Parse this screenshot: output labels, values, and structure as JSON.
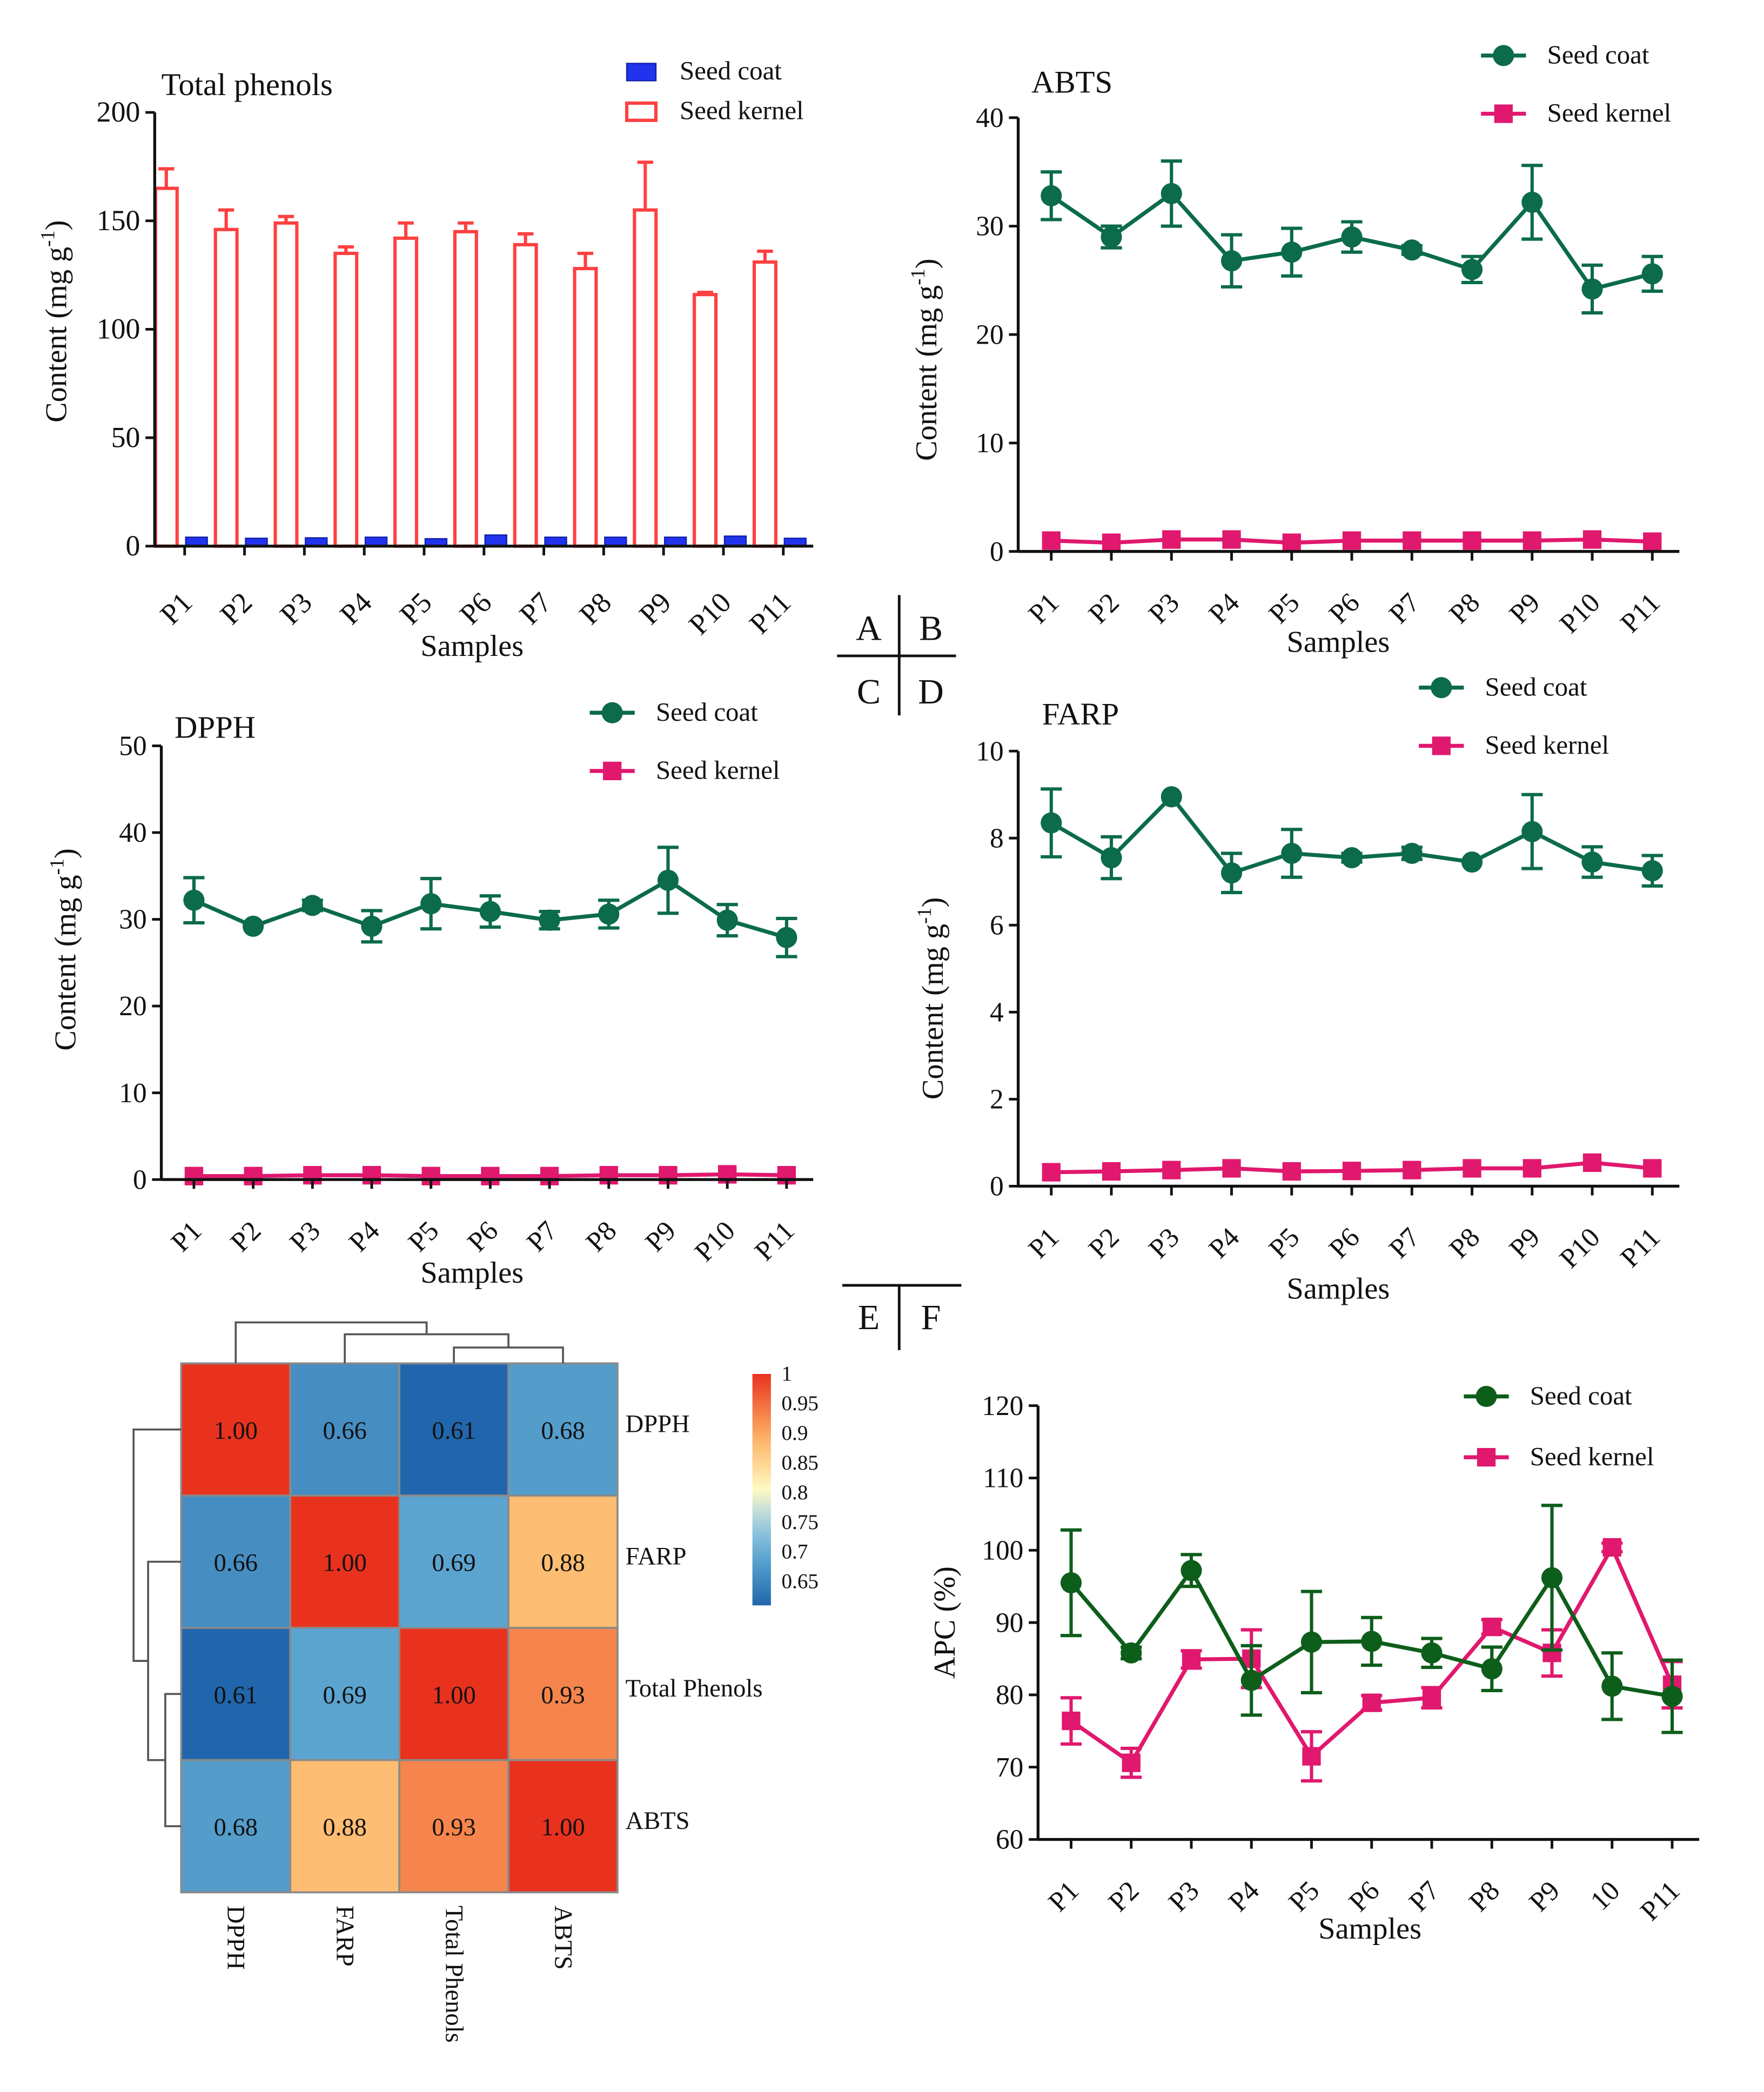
{
  "panel_letters": [
    "A",
    "B",
    "C",
    "D",
    "E",
    "F"
  ],
  "samples": [
    "P1",
    "P2",
    "P3",
    "P4",
    "P5",
    "P6",
    "P7",
    "P8",
    "P9",
    "P10",
    "P11"
  ],
  "colors": {
    "coat_bar": "#2233ee",
    "kernel_bar": "#ff4040",
    "coat_line": "#0b6b4a",
    "kernel_line": "#e0186e",
    "coat_line_f": "#0d5e1a",
    "heat_low": "#2166ac",
    "heat_mid": "#fff9c4",
    "heat_high": "#e8321e"
  },
  "chart_data": [
    {
      "id": "A",
      "type": "bar",
      "title": "Total phenols",
      "xlabel": "Samples",
      "ylabel": "Content (mg g",
      "ylabel_sup": "-1",
      "ylabel_end": ")",
      "categories": [
        "P1",
        "P2",
        "P3",
        "P4",
        "P5",
        "P6",
        "P7",
        "P8",
        "P9",
        "P10",
        "P11"
      ],
      "ylim": [
        0,
        200
      ],
      "yticks": [
        0,
        50,
        100,
        150,
        200
      ],
      "legend_position": "top-right",
      "series": [
        {
          "name": "Seed coat",
          "values": [
            3.5,
            3,
            3.2,
            3.5,
            2.8,
            4.5,
            3.5,
            3.5,
            3.5,
            4,
            3
          ],
          "errors": [
            0.5,
            0.4,
            0.4,
            0.5,
            0.4,
            0.6,
            0.5,
            0.5,
            0.5,
            0.5,
            0.4
          ]
        },
        {
          "name": "Seed kernel",
          "values": [
            165,
            146,
            149,
            135,
            142,
            145,
            139,
            128,
            155,
            116,
            131
          ],
          "errors": [
            9,
            9,
            3,
            3,
            7,
            4,
            5,
            7,
            22,
            1,
            5
          ]
        }
      ]
    },
    {
      "id": "B",
      "type": "line",
      "title": "ABTS",
      "xlabel": "Samples",
      "ylabel": "Content (mg g",
      "ylabel_sup": "-1",
      "ylabel_end": ")",
      "categories": [
        "P1",
        "P2",
        "P3",
        "P4",
        "P5",
        "P6",
        "P7",
        "P8",
        "P9",
        "P10",
        "P11"
      ],
      "ylim": [
        0,
        40
      ],
      "yticks": [
        0,
        10,
        20,
        30,
        40
      ],
      "legend_position": "top-right",
      "series": [
        {
          "name": "Seed coat",
          "marker": "circle",
          "values": [
            32.8,
            29.0,
            33.0,
            26.8,
            27.6,
            29.0,
            27.8,
            26.0,
            32.2,
            24.2,
            25.6
          ],
          "errors": [
            2.2,
            1.0,
            3.0,
            2.4,
            2.2,
            1.4,
            0.4,
            1.2,
            3.4,
            2.2,
            1.6
          ]
        },
        {
          "name": "Seed kernel",
          "marker": "square",
          "values": [
            1.0,
            0.8,
            1.1,
            1.1,
            0.8,
            1.0,
            1.0,
            1.0,
            1.0,
            1.1,
            0.9
          ],
          "errors": [
            0.1,
            0.1,
            0.1,
            0.1,
            0.1,
            0.1,
            0.1,
            0.1,
            0.1,
            0.1,
            0.1
          ]
        }
      ]
    },
    {
      "id": "C",
      "type": "line",
      "title": "DPPH",
      "xlabel": "Samples",
      "ylabel": "Content (mg g",
      "ylabel_sup": "-1",
      "ylabel_end": ")",
      "categories": [
        "P1",
        "P2",
        "P3",
        "P4",
        "P5",
        "P6",
        "P7",
        "P8",
        "P9",
        "P10",
        "P11"
      ],
      "ylim": [
        0,
        50
      ],
      "yticks": [
        0,
        10,
        20,
        30,
        40,
        50
      ],
      "legend_position": "top-right",
      "series": [
        {
          "name": "Seed coat",
          "marker": "circle",
          "values": [
            32.2,
            29.2,
            31.6,
            29.2,
            31.8,
            30.9,
            29.9,
            30.6,
            34.5,
            29.9,
            27.9
          ],
          "errors": [
            2.6,
            0.4,
            0.6,
            1.8,
            2.9,
            1.8,
            1.0,
            1.6,
            3.8,
            1.8,
            2.2
          ]
        },
        {
          "name": "Seed kernel",
          "marker": "square",
          "values": [
            0.4,
            0.4,
            0.5,
            0.5,
            0.4,
            0.4,
            0.4,
            0.5,
            0.5,
            0.6,
            0.5
          ],
          "errors": [
            0.1,
            0.1,
            0.1,
            0.1,
            0.1,
            0.1,
            0.1,
            0.1,
            0.1,
            0.1,
            0.1
          ]
        }
      ]
    },
    {
      "id": "D",
      "type": "line",
      "title": "FARP",
      "xlabel": "Samples",
      "ylabel": "Content (mg g",
      "ylabel_sup": "-1",
      "ylabel_end": ")",
      "categories": [
        "P1",
        "P2",
        "P3",
        "P4",
        "P5",
        "P6",
        "P7",
        "P8",
        "P9",
        "P10",
        "P11"
      ],
      "ylim": [
        0,
        10
      ],
      "yticks": [
        0,
        2,
        4,
        6,
        8,
        10
      ],
      "legend_position": "top-right",
      "series": [
        {
          "name": "Seed coat",
          "marker": "circle",
          "values": [
            8.35,
            7.55,
            8.95,
            7.2,
            7.65,
            7.55,
            7.65,
            7.45,
            8.15,
            7.45,
            7.25
          ],
          "errors": [
            0.78,
            0.48,
            0.05,
            0.45,
            0.55,
            0.1,
            0.14,
            0.08,
            0.85,
            0.35,
            0.35
          ]
        },
        {
          "name": "Seed kernel",
          "marker": "square",
          "values": [
            0.32,
            0.34,
            0.37,
            0.41,
            0.34,
            0.35,
            0.37,
            0.41,
            0.41,
            0.54,
            0.41
          ],
          "errors": [
            0.04,
            0.04,
            0.04,
            0.04,
            0.04,
            0.04,
            0.04,
            0.04,
            0.04,
            0.04,
            0.04
          ]
        }
      ]
    },
    {
      "id": "E",
      "type": "heatmap",
      "rows": [
        "DPPH",
        "FARP",
        "Total Phenols",
        "ABTS"
      ],
      "cols": [
        "DPPH",
        "FARP",
        "Total Phenols",
        "ABTS"
      ],
      "values": [
        [
          1.0,
          0.66,
          0.61,
          0.68
        ],
        [
          0.66,
          1.0,
          0.69,
          0.88
        ],
        [
          0.61,
          0.69,
          1.0,
          0.93
        ],
        [
          0.68,
          0.88,
          0.93,
          1.0
        ]
      ],
      "cell_labels": [
        [
          "1.00",
          "0.66",
          "0.61",
          "0.68"
        ],
        [
          "0.66",
          "1.00",
          "0.69",
          "0.88"
        ],
        [
          "0.61",
          "0.69",
          "1.00",
          "0.93"
        ],
        [
          "0.68",
          "0.88",
          "0.93",
          "1.00"
        ]
      ],
      "colorbar_ticks": [
        "1",
        "0.95",
        "0.9",
        "0.85",
        "0.8",
        "0.75",
        "0.7",
        "0.65"
      ],
      "colorbar_tick_values": [
        1,
        0.95,
        0.9,
        0.85,
        0.8,
        0.75,
        0.7,
        0.65
      ],
      "colorbar_range": [
        0.61,
        1.0
      ],
      "dendrogram": "hierarchical clustering on rows and columns"
    },
    {
      "id": "F",
      "type": "line",
      "title": "",
      "xlabel": "Samples",
      "ylabel": "APC (%)",
      "categories": [
        "P1",
        "P2",
        "P3",
        "P4",
        "P5",
        "P6",
        "P7",
        "P8",
        "P9",
        "10",
        "P11"
      ],
      "ylim": [
        60,
        120
      ],
      "yticks": [
        60,
        70,
        80,
        90,
        100,
        110,
        120
      ],
      "legend_position": "top-right",
      "series": [
        {
          "name": "Seed coat",
          "marker": "circle",
          "values": [
            95.5,
            85.8,
            97.2,
            82.0,
            87.3,
            87.4,
            85.8,
            83.6,
            96.2,
            81.2,
            79.8
          ],
          "errors": [
            7.3,
            0.8,
            2.2,
            4.8,
            7.0,
            3.3,
            2.0,
            3.0,
            10.0,
            4.6,
            5.0
          ]
        },
        {
          "name": "Seed kernel",
          "marker": "square",
          "values": [
            76.4,
            70.6,
            84.9,
            85.0,
            71.5,
            78.9,
            79.6,
            89.4,
            85.8,
            100.4,
            81.4
          ],
          "errors": [
            3.2,
            2.0,
            1.2,
            4.0,
            3.4,
            1.0,
            1.4,
            1.0,
            3.2,
            0.6,
            3.2
          ]
        }
      ]
    }
  ]
}
